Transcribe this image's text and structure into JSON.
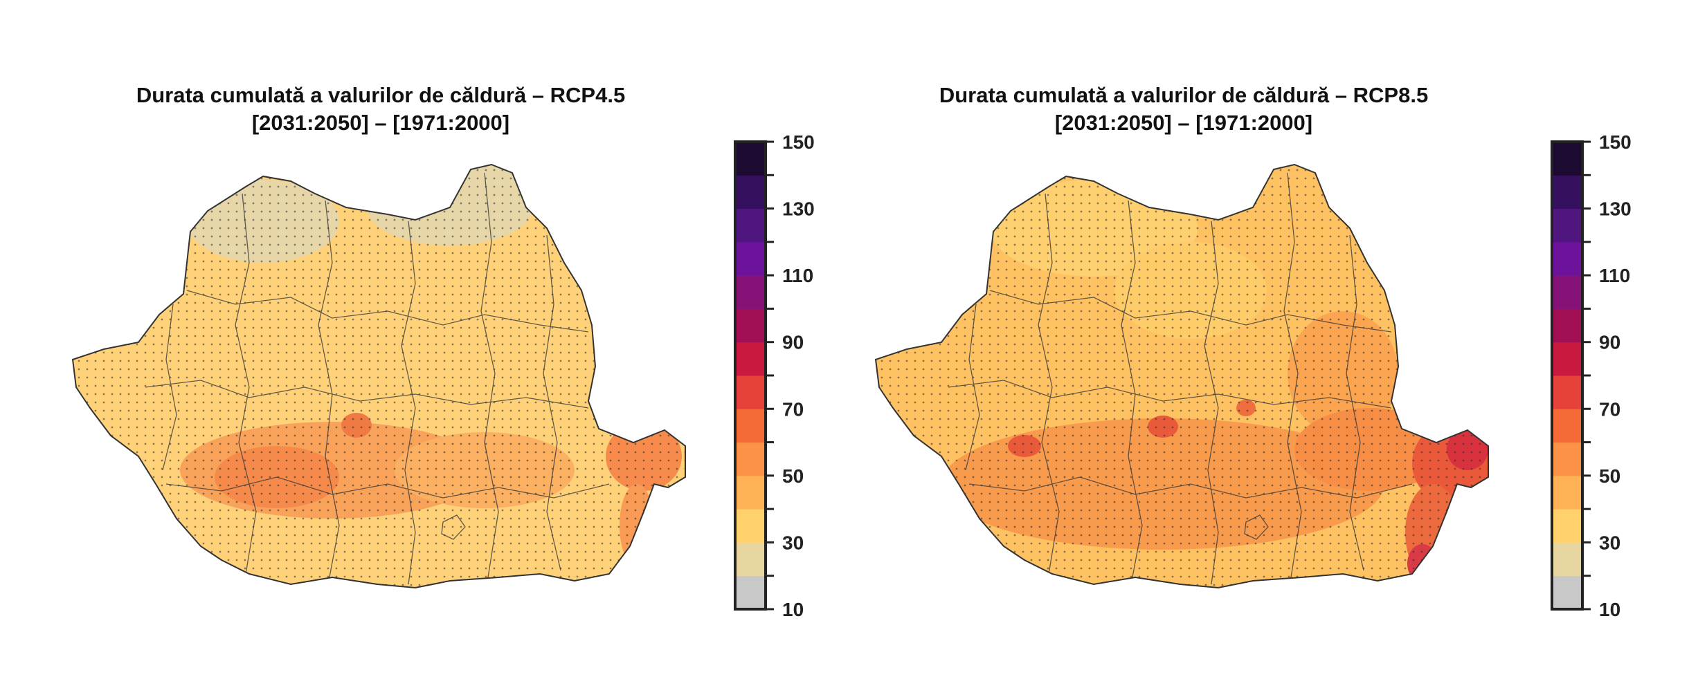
{
  "panels": [
    {
      "title_line1": "Durata cumulată a valurilor de căldură – RCP4.5",
      "title_line2": "[2031:2050] – [1971:2000]",
      "scenario": "RCP4.5"
    },
    {
      "title_line1": "Durata cumulată a valurilor de căldură – RCP8.5",
      "title_line2": "[2031:2050] – [1971:2000]",
      "scenario": "RCP8.5"
    }
  ],
  "colorbar": {
    "labels": [
      "150",
      "130",
      "110",
      "90",
      "70",
      "50",
      "30",
      "10"
    ],
    "min": 10,
    "max": 150,
    "step": 10,
    "colors": [
      "#c8c8c8",
      "#e8d6a0",
      "#ffd26e",
      "#ffb255",
      "#fb9248",
      "#f56b38",
      "#e6413a",
      "#c9193f",
      "#a30f54",
      "#851277",
      "#6c129b",
      "#501680",
      "#35105f",
      "#1d0a30"
    ]
  }
}
